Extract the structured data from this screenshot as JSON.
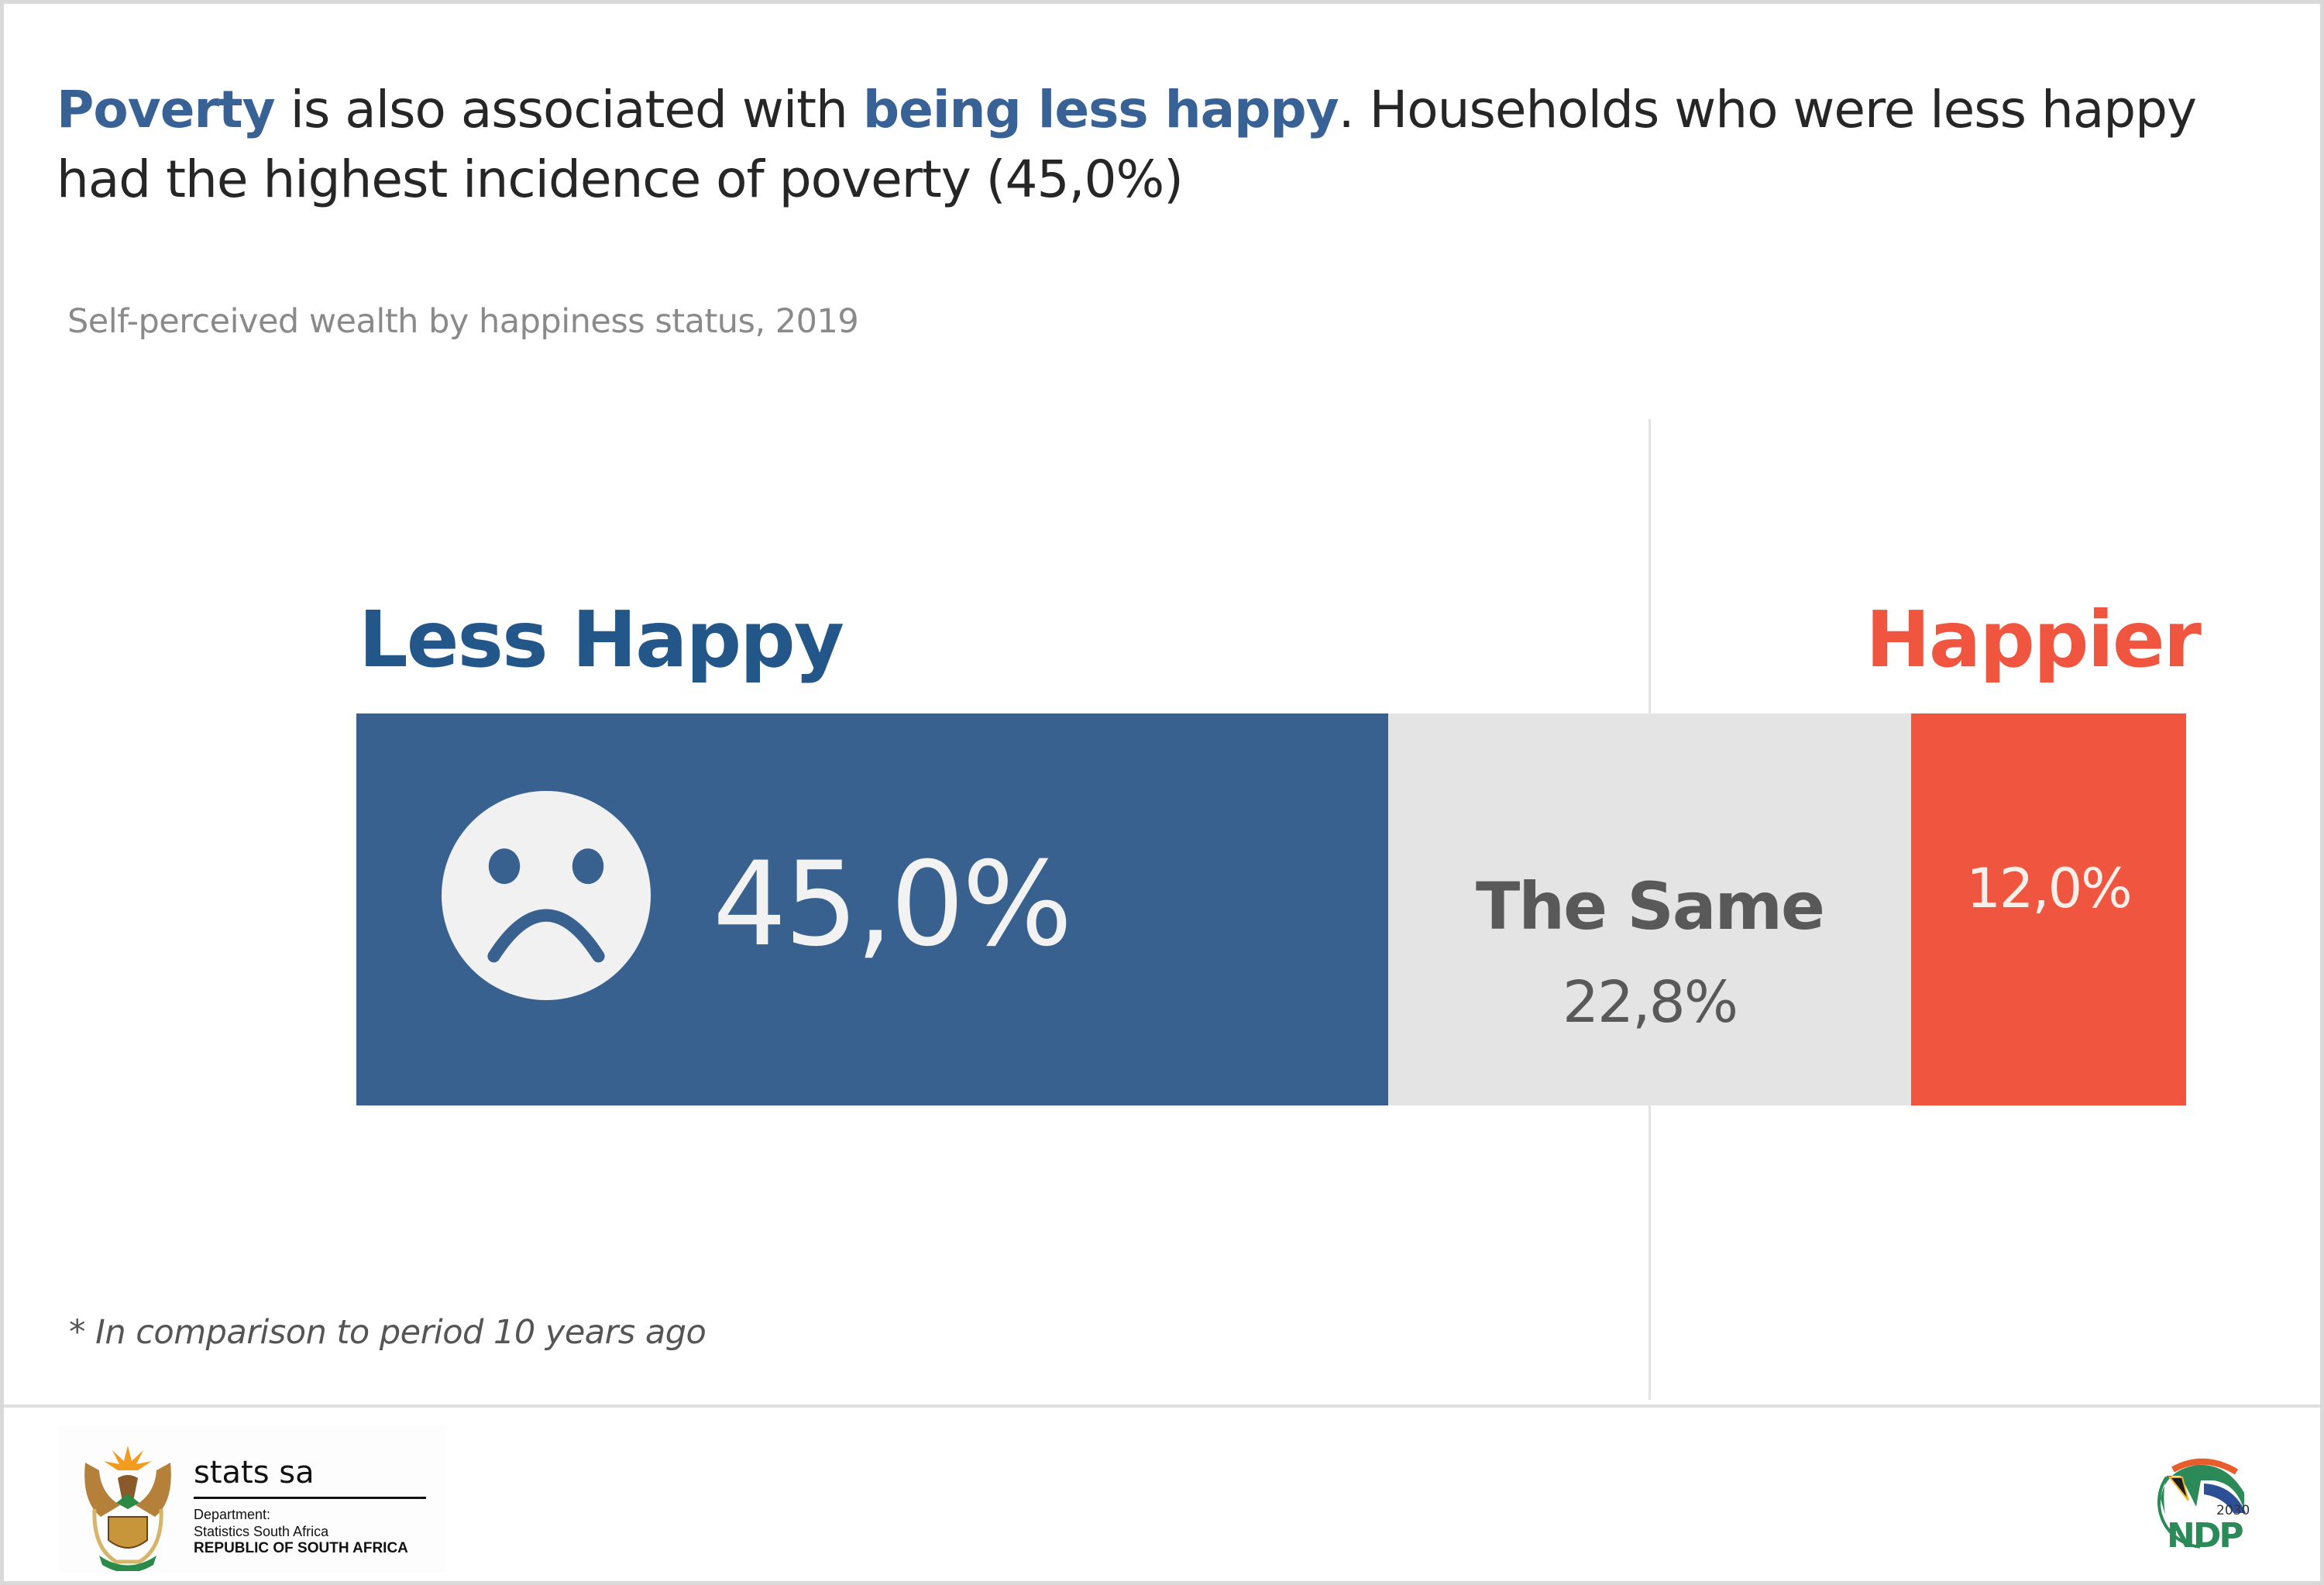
{
  "headline": {
    "parts": [
      {
        "text": "Poverty",
        "highlight": true
      },
      {
        "text": " is also associated with ",
        "highlight": false
      },
      {
        "text": "being less happy",
        "highlight": true
      },
      {
        "text": ". Households who were less happy had the highest incidence of poverty (45,0%)",
        "highlight": false
      }
    ]
  },
  "subtitle": "Self-perceived wealth by happiness status, 2019",
  "footnote": "* In comparison to period 10 years ago",
  "colors": {
    "less_happy": "#386190",
    "the_same": "#e4e4e4",
    "happier": "#f0563f",
    "highlight_text": "#386295"
  },
  "chart_data": {
    "type": "bar",
    "orientation": "horizontal-stacked",
    "title": "Self-perceived wealth by happiness status, 2019",
    "categories": [
      "Less Happy",
      "The Same",
      "Happier"
    ],
    "values": [
      45.0,
      22.8,
      12.0
    ],
    "value_labels": [
      "45,0%",
      "22,8%",
      "12,0%"
    ],
    "unit": "%",
    "xlabel": "",
    "ylabel": "",
    "grid": false,
    "legend": "none",
    "annotations": [
      "Less Happy",
      "Happier",
      "The Same"
    ]
  },
  "footer": {
    "statssa": {
      "name": "stats sa",
      "line1": "Department:",
      "line2": "Statistics South Africa",
      "line3": "REPUBLIC OF SOUTH AFRICA"
    },
    "ndp": {
      "year": "2030",
      "text": "NDP"
    }
  },
  "icons": {
    "sad_face": "sad-face-icon",
    "coat_of_arms": "coat-of-arms-logo",
    "ndp_logo": "ndp-2030-logo"
  }
}
